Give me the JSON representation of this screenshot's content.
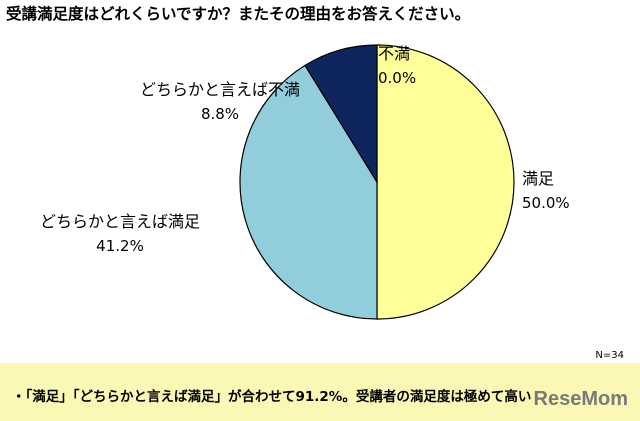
{
  "title": "受講満足度はどれくらいですか？またその理由をお答えください。",
  "chart_data": {
    "type": "pie",
    "slices": [
      {
        "name": "満足",
        "value": 50.0,
        "label": "50.0%",
        "color": "#ffff99"
      },
      {
        "name": "どちらかと言えば満足",
        "value": 41.2,
        "label": "41.2%",
        "color": "#92cddc"
      },
      {
        "name": "どちらかと言えば不満",
        "value": 8.8,
        "label": "8.8%",
        "color": "#0f255e"
      },
      {
        "name": "不満",
        "value": 0.0,
        "label": "0.0%",
        "color": "#c00000"
      }
    ],
    "start": "12 o'clock",
    "direction": "clockwise",
    "edge_color": "#000000"
  },
  "n_label": "N=34",
  "note": "・「満足」「どちらかと言えば満足」が合わせて91.2%。受講者の満足度は極めて高い",
  "watermark": "ReseMom"
}
